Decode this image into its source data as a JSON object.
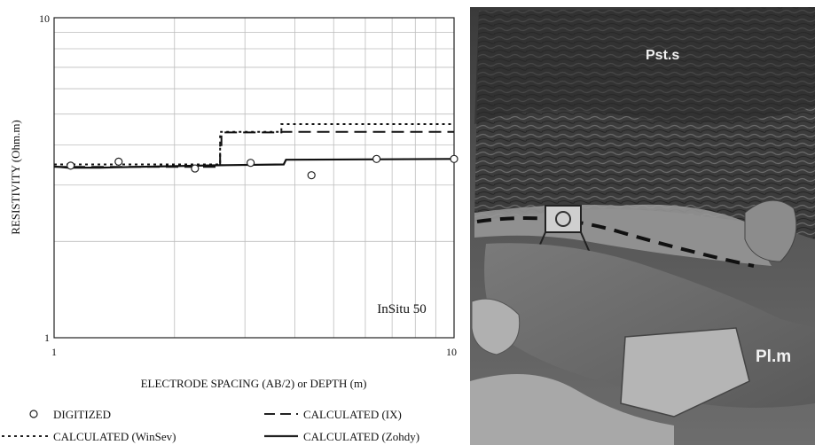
{
  "chart_data": {
    "type": "line",
    "xscale": "log",
    "yscale": "log",
    "xlim": [
      1,
      10
    ],
    "ylim": [
      1,
      10
    ],
    "x_ticks": [
      "1",
      "10"
    ],
    "y_ticks": [
      "1",
      "10"
    ],
    "xlabel": "ELECTRODE SPACING (AB/2) or DEPTH (m)",
    "ylabel": "RESISTIVITY (Ohm.m)",
    "annotation": "InSitu 50",
    "grid": true,
    "series": [
      {
        "name": "DIGITIZED",
        "style": "markers",
        "points": [
          {
            "x": 1.1,
            "y": 3.45
          },
          {
            "x": 1.45,
            "y": 3.55
          },
          {
            "x": 2.25,
            "y": 3.38
          },
          {
            "x": 3.1,
            "y": 3.52
          },
          {
            "x": 4.4,
            "y": 3.22
          },
          {
            "x": 6.4,
            "y": 3.62
          },
          {
            "x": 10,
            "y": 3.62
          }
        ]
      },
      {
        "name": "CALCULATED (WinSev)",
        "style": "dotted",
        "points": [
          {
            "x": 1,
            "y": 3.48
          },
          {
            "x": 2.6,
            "y": 3.48
          },
          {
            "x": 2.6,
            "y": 4.4
          },
          {
            "x": 3.7,
            "y": 4.4
          },
          {
            "x": 3.7,
            "y": 4.65
          },
          {
            "x": 10,
            "y": 4.65
          }
        ]
      },
      {
        "name": "CALCULATED (IX)",
        "style": "dashed",
        "points": [
          {
            "x": 1,
            "y": 3.42
          },
          {
            "x": 2.6,
            "y": 3.42
          },
          {
            "x": 2.6,
            "y": 4.0
          },
          {
            "x": 2.62,
            "y": 4.0
          },
          {
            "x": 2.62,
            "y": 4.38
          },
          {
            "x": 3.7,
            "y": 4.38
          },
          {
            "x": 3.7,
            "y": 4.4
          },
          {
            "x": 10,
            "y": 4.4
          }
        ]
      },
      {
        "name": "CALCULATED (Zohdy)",
        "style": "solid",
        "points": [
          {
            "x": 1,
            "y": 3.43
          },
          {
            "x": 1.08,
            "y": 3.4
          },
          {
            "x": 1.3,
            "y": 3.4
          },
          {
            "x": 2.6,
            "y": 3.46
          },
          {
            "x": 3.75,
            "y": 3.48
          },
          {
            "x": 3.8,
            "y": 3.6
          },
          {
            "x": 10,
            "y": 3.62
          }
        ]
      }
    ]
  },
  "photo": {
    "labels": [
      {
        "id": "upper",
        "text": "Pst.s"
      },
      {
        "id": "lower",
        "text": "Pl.m"
      }
    ]
  }
}
